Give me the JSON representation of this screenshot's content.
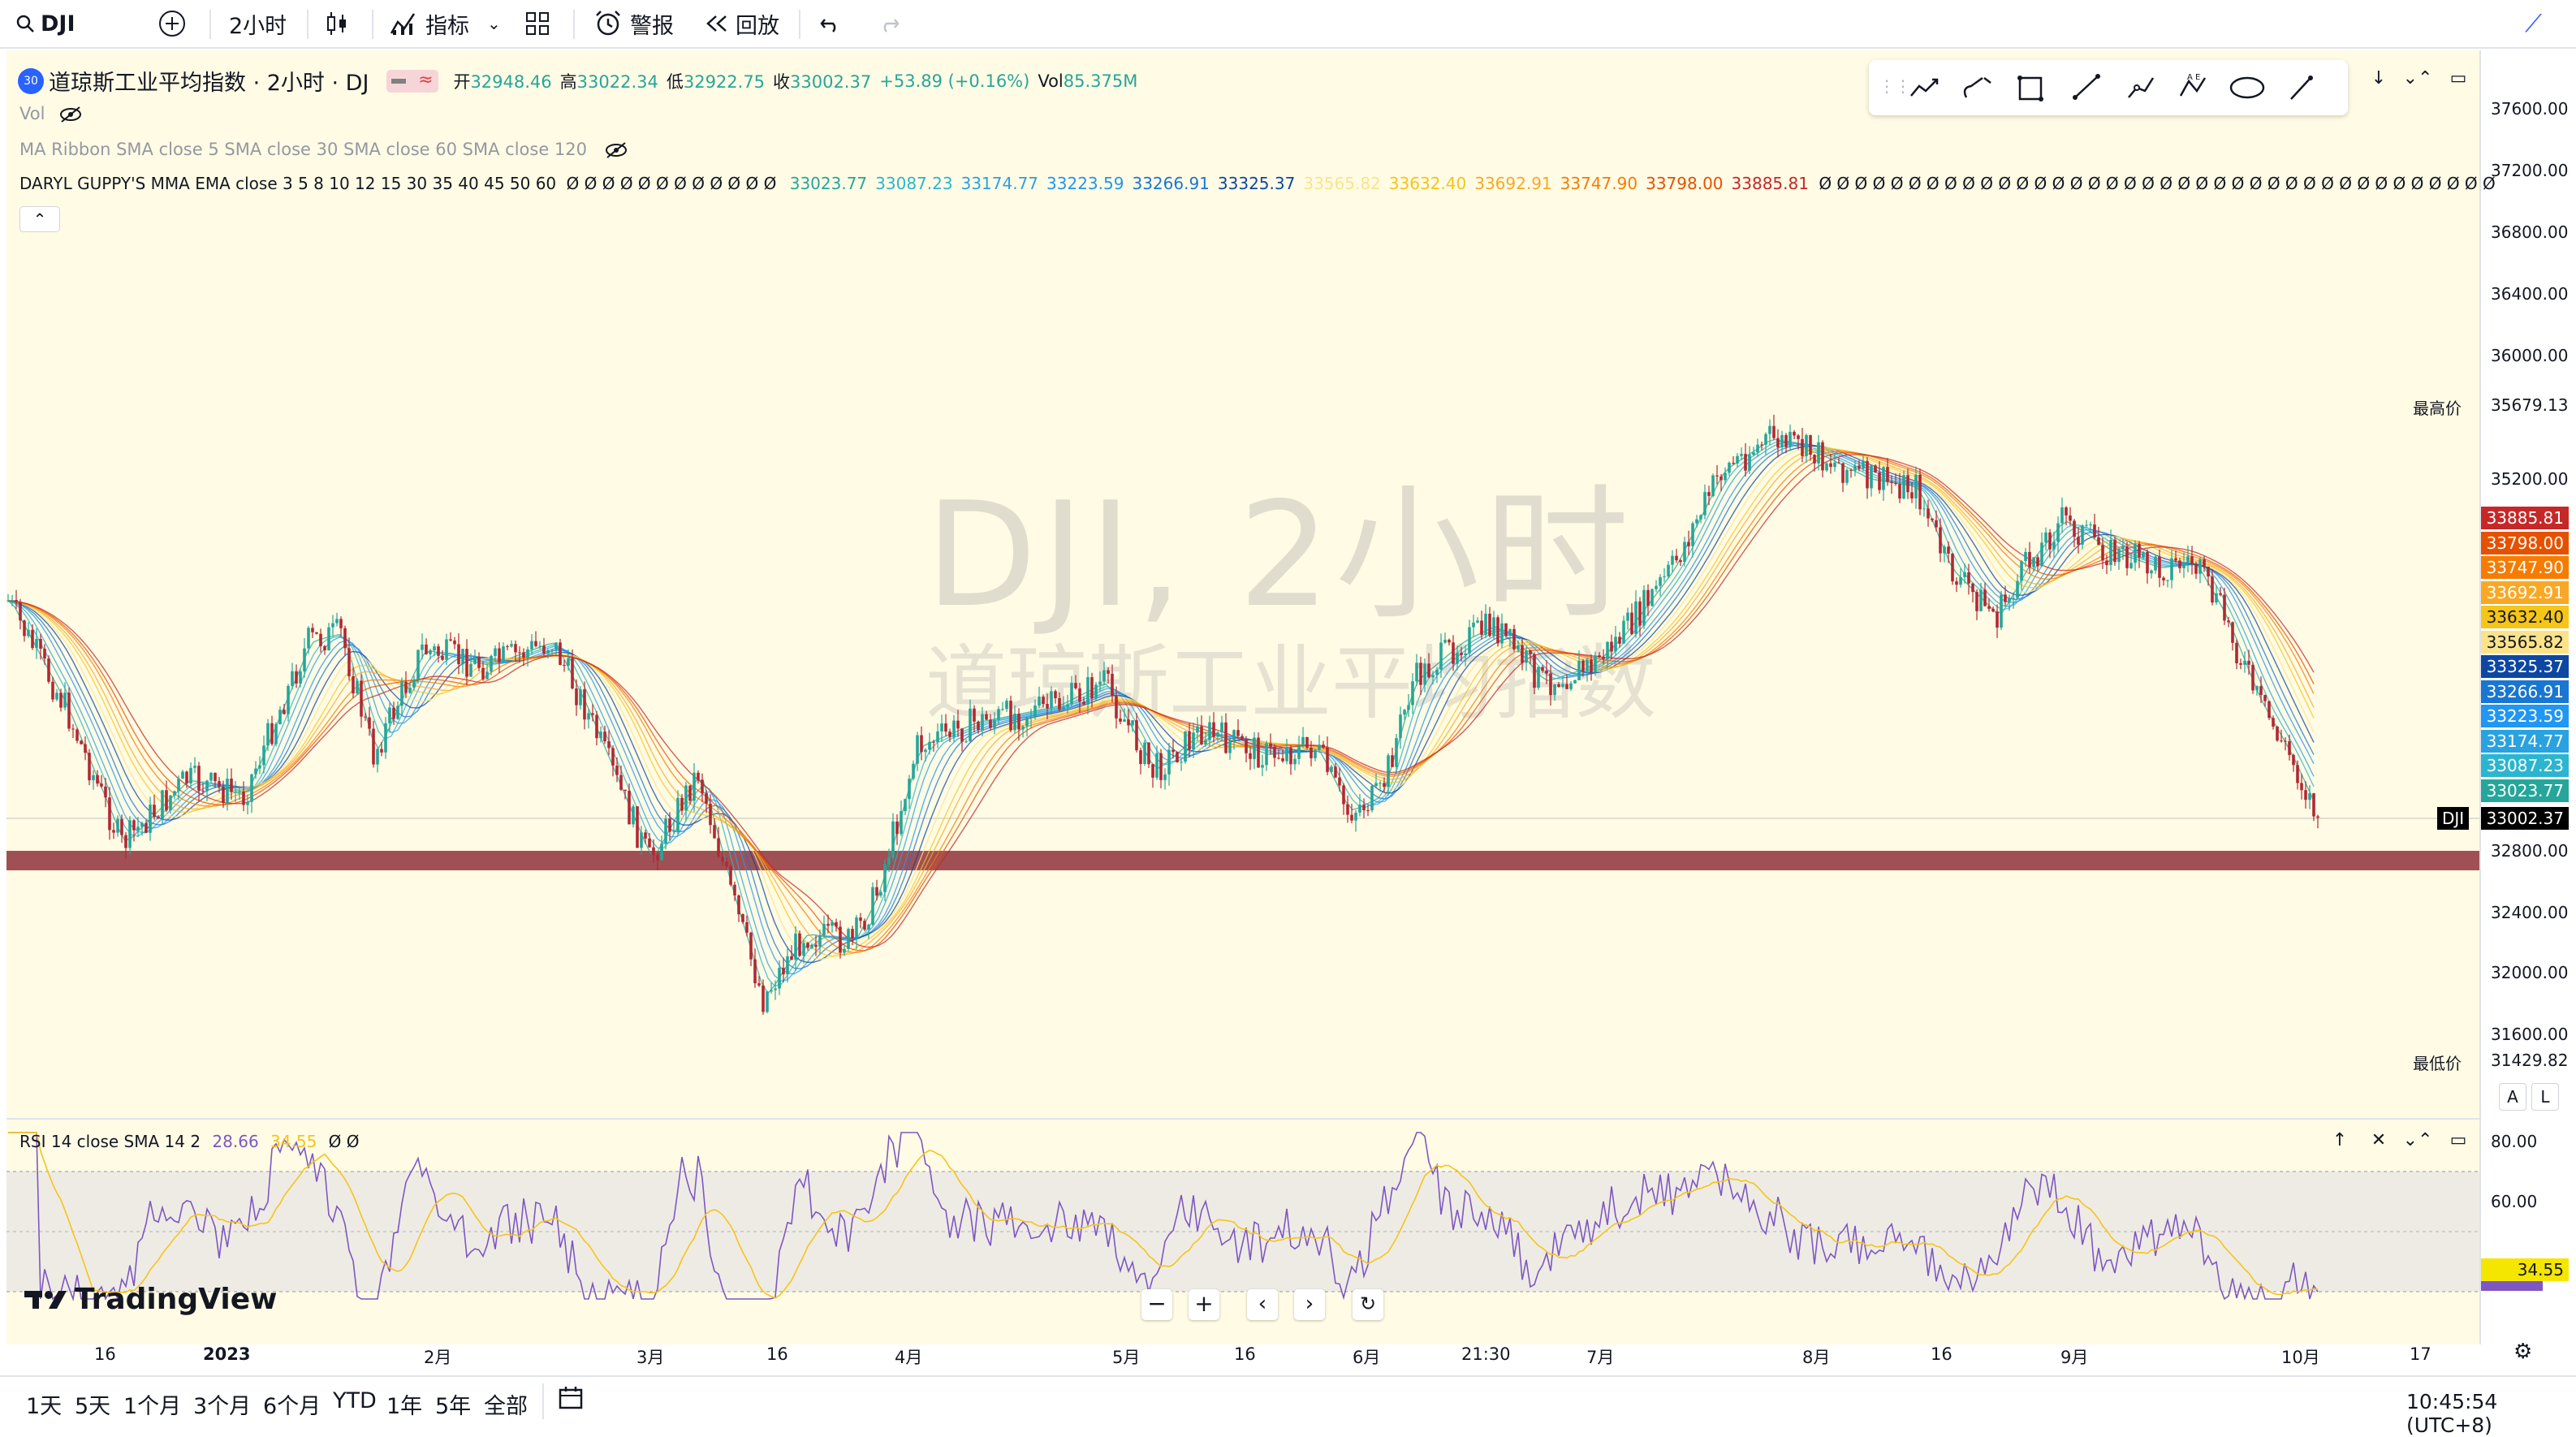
{
  "header": {
    "symbol": "DJI",
    "interval": "2小时",
    "indicators_label": "指标",
    "alert_label": "警报",
    "replay_label": "回放"
  },
  "legend": {
    "title": "道琼斯工业平均指数 · 2小时 · DJ",
    "badge": "30",
    "open_label": "开",
    "open": "32948.46",
    "high_label": "高",
    "high": "33022.34",
    "low_label": "低",
    "low": "32922.75",
    "close_label": "收",
    "close": "33002.37",
    "change": "+53.89 (+0.16%)",
    "vol_label": "Vol",
    "vol": "85.375M",
    "vol_indicator": "Vol",
    "ma_ribbon": "MA Ribbon SMA close 5 SMA close 30 SMA close 60 SMA close 120",
    "guppy_label": "DARYL GUPPY'S MMA EMA close 3 5 8 10 12 15 30 35 40 45 50 60",
    "guppy_empty": "Ø Ø Ø Ø Ø Ø Ø Ø Ø Ø Ø Ø",
    "guppy_empty_tail": "Ø Ø Ø Ø Ø Ø Ø Ø Ø Ø Ø Ø Ø Ø Ø Ø Ø Ø Ø Ø Ø Ø Ø Ø Ø Ø Ø Ø Ø Ø Ø Ø Ø Ø Ø Ø Ø Ø",
    "guppy_values": [
      {
        "v": "33023.77",
        "c": "#26a69a"
      },
      {
        "v": "33087.23",
        "c": "#2bb5d0"
      },
      {
        "v": "33174.77",
        "c": "#2aa2e0"
      },
      {
        "v": "33223.59",
        "c": "#2196f3"
      },
      {
        "v": "33266.91",
        "c": "#1976d2"
      },
      {
        "v": "33325.37",
        "c": "#0d47a1"
      },
      {
        "v": "33565.82",
        "c": "#fce38a"
      },
      {
        "v": "33632.40",
        "c": "#f5c518"
      },
      {
        "v": "33692.91",
        "c": "#f9a825"
      },
      {
        "v": "33747.90",
        "c": "#f57c00"
      },
      {
        "v": "33798.00",
        "c": "#e65100"
      },
      {
        "v": "33885.81",
        "c": "#c62828"
      }
    ]
  },
  "watermark": {
    "line1": "DJI, 2小时",
    "line2": "道琼斯工业平均指数"
  },
  "price_axis": {
    "ticks": [
      "37600.00",
      "37200.00",
      "36800.00",
      "36400.00",
      "36000.00",
      "35200.00",
      "32800.00",
      "32400.00",
      "32000.00",
      "31600.00"
    ],
    "high_label": "最高价",
    "high_value": "35679.13",
    "low_label": "最低价",
    "low_value": "31429.82",
    "symbol_tag": "DJI",
    "last_price": "33002.37",
    "ema_tags": [
      {
        "v": "33885.81",
        "c": "#c62828"
      },
      {
        "v": "33798.00",
        "c": "#e65100"
      },
      {
        "v": "33747.90",
        "c": "#f57c00"
      },
      {
        "v": "33692.91",
        "c": "#f9a825"
      },
      {
        "v": "33632.40",
        "c": "#f5c518"
      },
      {
        "v": "33565.82",
        "c": "#fce38a"
      },
      {
        "v": "33325.37",
        "c": "#0d47a1"
      },
      {
        "v": "33266.91",
        "c": "#1976d2"
      },
      {
        "v": "33223.59",
        "c": "#2196f3"
      },
      {
        "v": "33174.77",
        "c": "#2aa2e0"
      },
      {
        "v": "33087.23",
        "c": "#2bb5d0"
      },
      {
        "v": "33023.77",
        "c": "#26a69a"
      }
    ],
    "auto_label": "A",
    "log_label": "L"
  },
  "rsi": {
    "label": "RSI 14 close SMA 14 2",
    "value": "28.66",
    "sma_value": "34.55",
    "empty": "Ø Ø",
    "ticks": [
      "80.00",
      "60.00"
    ],
    "tag_value": "34.55"
  },
  "time_axis": [
    "16",
    "2023",
    "2月",
    "3月",
    "16",
    "4月",
    "5月",
    "16",
    "6月",
    "21:30",
    "7月",
    "8月",
    "16",
    "9月",
    "10月",
    "17"
  ],
  "ranges": [
    "1天",
    "5天",
    "1个月",
    "3个月",
    "6个月",
    "YTD",
    "1年",
    "5年",
    "全部"
  ],
  "clock": "10:45:54 (UTC+8)",
  "brand": "TradingView",
  "colors": {
    "up": "#26a69a",
    "down": "#b22833",
    "support_zone": "#a05054",
    "rsi": "#7e57c2",
    "rsi_sma": "#f5c518",
    "background": "#fffbe5"
  }
}
